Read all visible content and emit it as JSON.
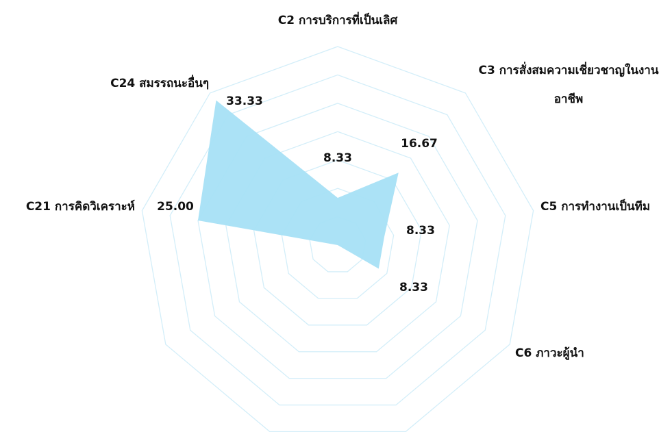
{
  "chart_data": {
    "type": "radar",
    "categories": [
      "C2 การบริการที่เป็นเลิศ",
      "C3 การสั่งสมความเชี่ยวชาญในงานอาชีพ",
      "C5 การทำงานเป็นทีม",
      "C6 ภาวะผู้นำ",
      null,
      null,
      null,
      "C21 การคิดวิเคราะห์",
      "C24 สมรรถนะอื่นๆ"
    ],
    "values": [
      8.33,
      16.67,
      8.33,
      8.33,
      0,
      0,
      0,
      25,
      33.33
    ],
    "value_labels": [
      "8.33",
      "16.67",
      "8.33",
      "8.33",
      null,
      null,
      null,
      "25.00",
      "33.33"
    ],
    "color": "#a6e0f6",
    "ylim": [
      0,
      35
    ],
    "yticks": [
      0,
      5,
      10,
      15,
      20,
      25,
      30,
      35
    ],
    "grid": true
  }
}
